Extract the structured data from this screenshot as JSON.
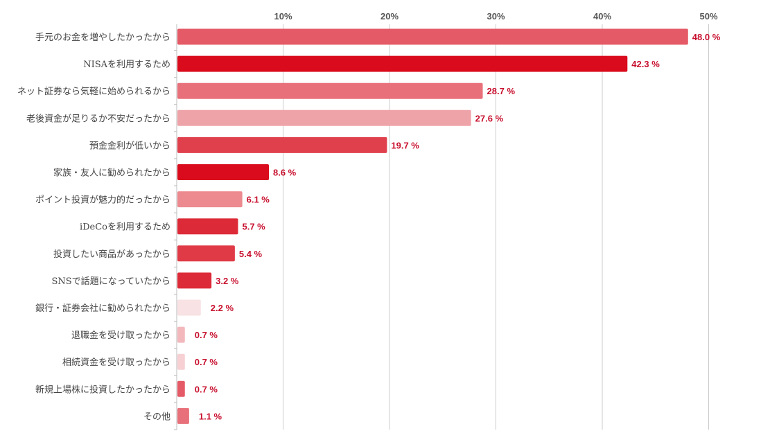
{
  "chart_data": {
    "type": "bar",
    "orientation": "horizontal",
    "title": "",
    "xlabel": "",
    "ylabel": "",
    "xlim": [
      0,
      50
    ],
    "grid": true,
    "tick_values": [
      10,
      20,
      30,
      40,
      50
    ],
    "tick_labels": [
      "10%",
      "20%",
      "30%",
      "40%",
      "50%"
    ],
    "categories": [
      "手元のお金を増やしたかったから",
      "NISAを利用するため",
      "ネット証券なら気軽に始められるから",
      "老後資金が足りるか不安だったから",
      "預金金利が低いから",
      "家族・友人に勧められたから",
      "ポイント投資が魅力的だったから",
      "iDeCoを利用するため",
      "投資したい商品があったから",
      "SNSで話題になっていたから",
      "銀行・証券会社に勧められたから",
      "退職金を受け取ったから",
      "相続資金を受け取ったから",
      "新規上場株に投資したかったから",
      "その他"
    ],
    "values": [
      48.0,
      42.3,
      28.7,
      27.6,
      19.7,
      8.6,
      6.1,
      5.7,
      5.4,
      3.2,
      2.2,
      0.7,
      0.7,
      0.7,
      1.1
    ],
    "value_labels": [
      "48.0 %",
      "42.3 %",
      "28.7 %",
      "27.6 %",
      "19.7 %",
      "8.6 %",
      "6.1 %",
      "5.7 %",
      "5.4 %",
      "3.2 %",
      "2.2 %",
      "0.7 %",
      "0.7 %",
      "0.7 %",
      "1.1 %"
    ],
    "bar_colors": [
      "#e45a66",
      "#d90b1c",
      "#e8707a",
      "#eea3a8",
      "#e0404c",
      "#d90b1c",
      "#ec8a90",
      "#dd2a38",
      "#e03a47",
      "#dd2a38",
      "#f8e2e3",
      "#f2b8bc",
      "#f6d0d3",
      "#e45a66",
      "#e8707a"
    ],
    "label_color": "#c8102e",
    "grid_color": "#cccccc"
  }
}
